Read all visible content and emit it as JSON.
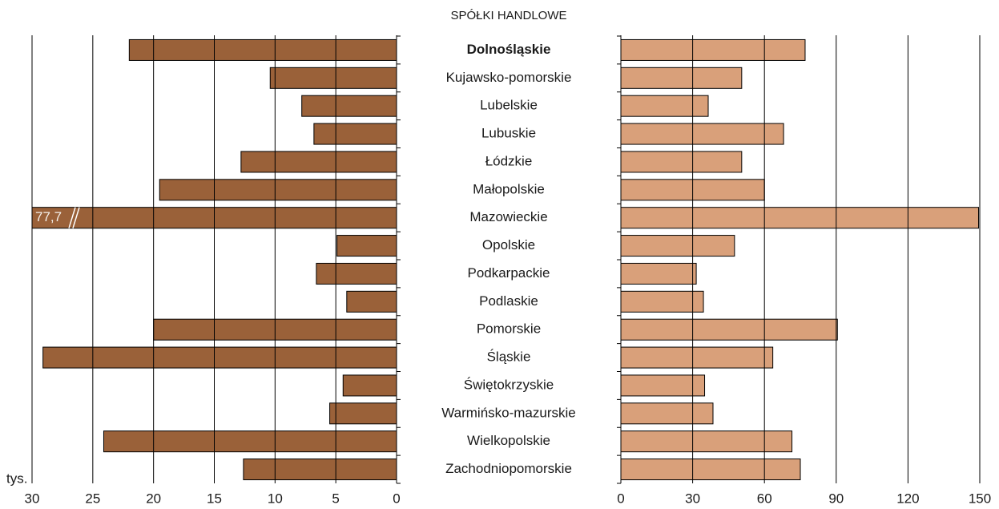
{
  "chart_data": [
    {
      "type": "bar",
      "orientation": "horizontal",
      "title": "SPÓŁKI HANDLOWE",
      "xlabel": "tys.",
      "categories": [
        "Dolnośląskie",
        "Kujawsko-pomorskie",
        "Lubelskie",
        "Lubuskie",
        "Łódzkie",
        "Małopolskie",
        "Mazowieckie",
        "Opolskie",
        "Podkarpackie",
        "Podlaskie",
        "Pomorskie",
        "Śląskie",
        "Świętokrzyskie",
        "Warmińsko-mazurskie",
        "Wielkopolskie",
        "Zachodniopomorskie"
      ],
      "values": [
        22.0,
        10.4,
        7.8,
        6.8,
        12.8,
        19.5,
        77.7,
        4.9,
        6.6,
        4.1,
        20.0,
        29.1,
        4.4,
        5.5,
        24.1,
        12.6
      ],
      "value_labels": [
        null,
        null,
        null,
        null,
        null,
        null,
        "77,7",
        null,
        null,
        null,
        null,
        null,
        null,
        null,
        null,
        null
      ],
      "color": "#9a6139",
      "xlim": [
        30,
        0
      ],
      "xticks": [
        30,
        25,
        20,
        15,
        10,
        5,
        0
      ],
      "grid": true
    },
    {
      "type": "bar",
      "orientation": "horizontal",
      "values": [
        77,
        50.5,
        36.5,
        68,
        50.5,
        60,
        149.5,
        47.5,
        31.5,
        34.5,
        90.5,
        63.5,
        35,
        38.5,
        71.5,
        75
      ],
      "color": "#d9a07a",
      "xlim": [
        0,
        150
      ],
      "xticks": [
        0,
        30,
        60,
        90,
        120,
        150
      ],
      "grid": true
    }
  ]
}
